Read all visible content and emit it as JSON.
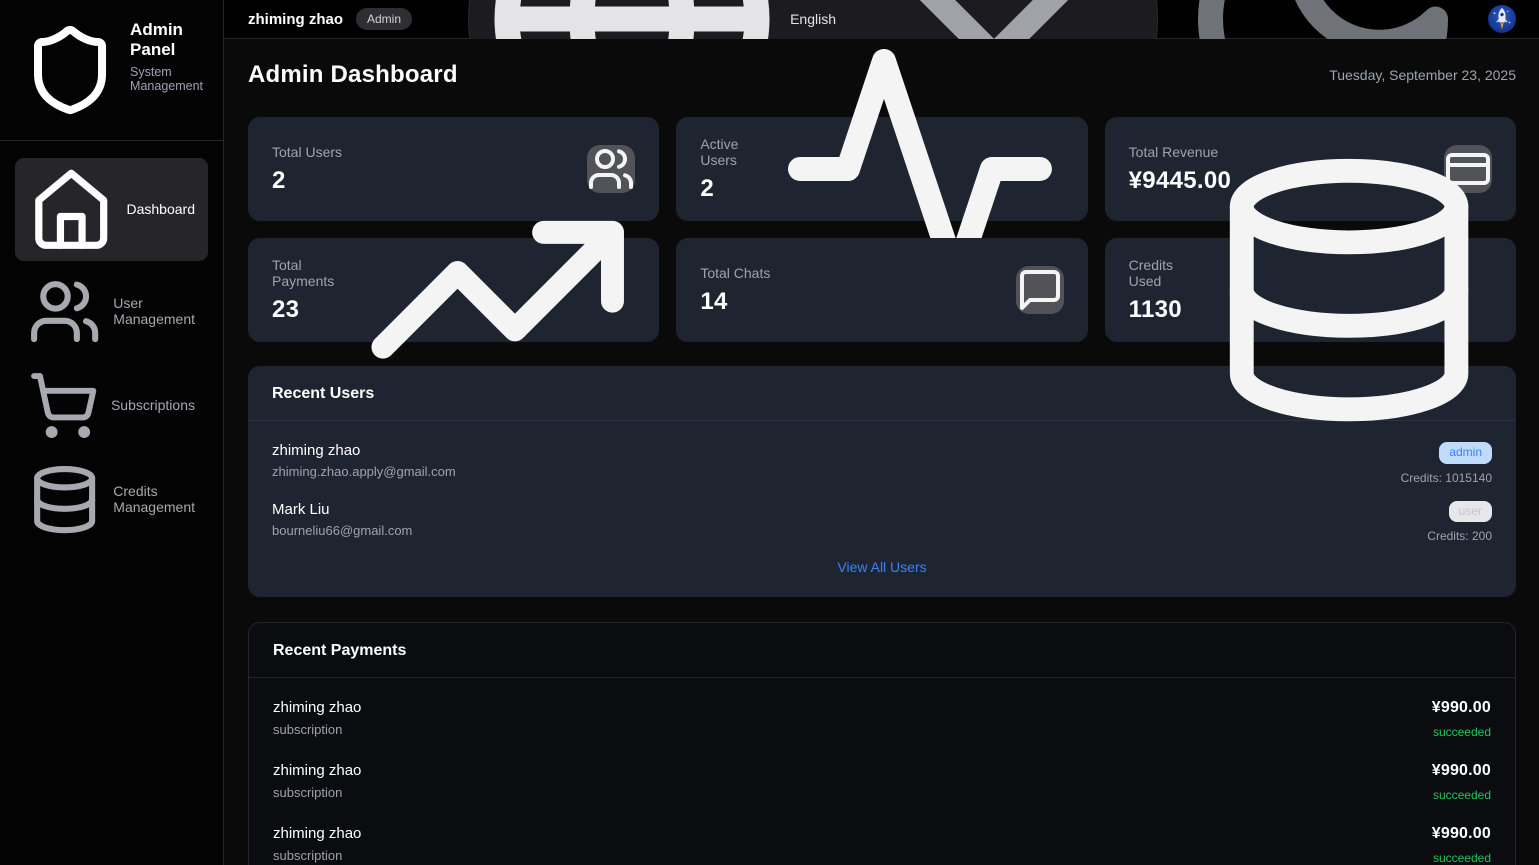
{
  "colors": {
    "accent_blue": "#3b82f6",
    "success_green": "#22c55e",
    "admin_badge_bg": "#bfdbfe",
    "admin_badge_text": "#3b82f6",
    "user_badge_bg": "#e5e7eb",
    "user_badge_text": "#c2c6cd",
    "card_bg": "#1e2531",
    "chip_bg": "#515359"
  },
  "brand": {
    "title": "Admin Panel",
    "subtitle": "System Management",
    "logo_icon": "shield"
  },
  "sidebar": {
    "items": [
      {
        "id": "dashboard",
        "label": "Dashboard",
        "icon": "home",
        "state": "active"
      },
      {
        "id": "user-management",
        "label": "User Management",
        "icon": "users",
        "state": ""
      },
      {
        "id": "subscriptions",
        "label": "Subscriptions",
        "icon": "cart",
        "state": ""
      },
      {
        "id": "credits-management",
        "label": "Credits Management",
        "icon": "database",
        "state": ""
      }
    ]
  },
  "topbar": {
    "user_name": "zhiming zhao",
    "role_badge": "Admin",
    "language": "English",
    "theme_icon": "moon",
    "avatar_icon": "rocket"
  },
  "page": {
    "title": "Admin Dashboard",
    "date": "Tuesday, September 23, 2025"
  },
  "stats": [
    {
      "label": "Total Users",
      "value": "2",
      "icon": "users",
      "icon_style": "chip"
    },
    {
      "label": "Active Users",
      "value": "2",
      "icon": "activity",
      "icon_style": "plain"
    },
    {
      "label": "Total Revenue",
      "value": "¥9445.00",
      "icon": "credit-card",
      "icon_style": "chip"
    },
    {
      "label": "Total Payments",
      "value": "23",
      "icon": "trending-up",
      "icon_style": "plain"
    },
    {
      "label": "Total Chats",
      "value": "14",
      "icon": "message-square",
      "icon_style": "chip"
    },
    {
      "label": "Credits Used",
      "value": "1130",
      "icon": "database",
      "icon_style": "plain"
    }
  ],
  "recent_users": {
    "title": "Recent Users",
    "view_all_label": "View All Users",
    "users": [
      {
        "name": "zhiming zhao",
        "email": "zhiming.zhao.apply@gmail.com",
        "role": "admin",
        "credits_label": "Credits: 1015140"
      },
      {
        "name": "Mark Liu",
        "email": "bourneliu66@gmail.com",
        "role": "user",
        "credits_label": "Credits: 200"
      }
    ]
  },
  "recent_payments": {
    "title": "Recent Payments",
    "payments": [
      {
        "name": "zhiming zhao",
        "type": "subscription",
        "amount": "¥990.00",
        "status": "succeeded"
      },
      {
        "name": "zhiming zhao",
        "type": "subscription",
        "amount": "¥990.00",
        "status": "succeeded"
      },
      {
        "name": "zhiming zhao",
        "type": "subscription",
        "amount": "¥990.00",
        "status": "succeeded"
      }
    ]
  }
}
